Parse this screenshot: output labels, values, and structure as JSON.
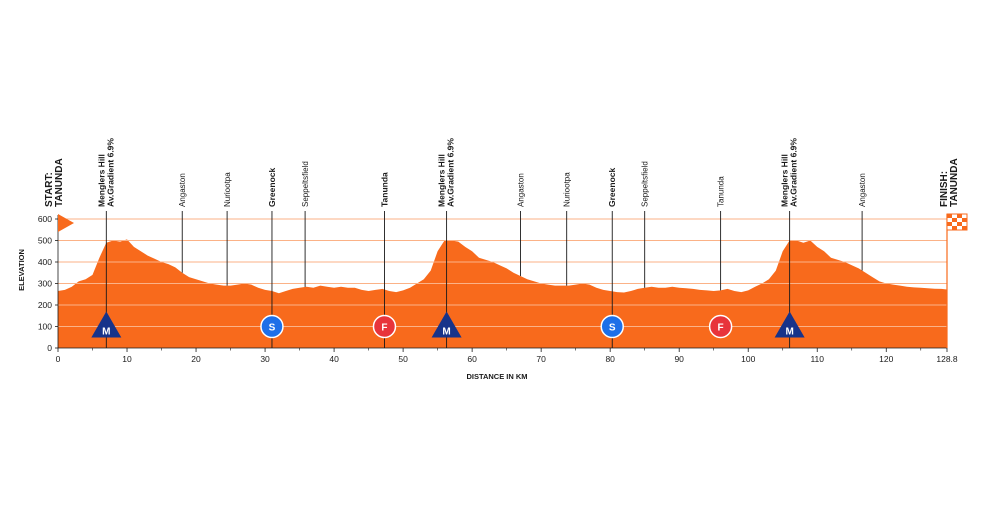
{
  "chart_data": {
    "type": "area",
    "xlabel": "DISTANCE IN KM",
    "ylabel": "ELEVATION",
    "xlim": [
      0,
      128.8
    ],
    "ylim": [
      0,
      600
    ],
    "x_ticks": [
      0,
      10,
      20,
      30,
      40,
      50,
      60,
      70,
      80,
      90,
      100,
      110,
      120,
      128.8
    ],
    "x_tick_labels": [
      "0",
      "10",
      "20",
      "30",
      "40",
      "50",
      "60",
      "70",
      "80",
      "90",
      "100",
      "110",
      "120",
      "128.8"
    ],
    "y_ticks": [
      0,
      100,
      200,
      300,
      400,
      500,
      600
    ],
    "y_tick_labels": [
      "0",
      "100",
      "200",
      "300",
      "400",
      "500",
      "600"
    ],
    "grid": true,
    "profile": {
      "x": [
        0,
        1,
        2,
        3,
        4,
        5,
        6,
        7,
        8,
        9,
        10,
        11,
        12,
        13,
        14,
        15,
        16,
        17,
        18,
        19,
        20,
        21,
        22,
        23,
        24,
        25,
        26,
        27,
        28,
        29,
        30,
        31,
        32,
        33,
        34,
        35,
        36,
        37,
        38,
        39,
        40,
        41,
        42,
        43,
        44,
        45,
        46,
        47,
        48,
        49,
        50,
        51,
        52,
        53,
        54,
        55,
        56,
        57,
        58,
        59,
        60,
        61,
        62,
        63,
        64,
        65,
        66,
        67,
        68,
        69,
        70,
        71,
        72,
        73,
        74,
        75,
        76,
        77,
        78,
        79,
        80,
        81,
        82,
        83,
        84,
        85,
        86,
        87,
        88,
        89,
        90,
        91,
        92,
        93,
        94,
        95,
        96,
        97,
        98,
        99,
        100,
        101,
        102,
        103,
        104,
        105,
        106,
        107,
        108,
        109,
        110,
        111,
        112,
        113,
        114,
        115,
        116,
        117,
        118,
        119,
        120,
        121,
        122,
        123,
        124,
        125,
        126,
        127,
        128,
        128.8
      ],
      "y": [
        265,
        270,
        285,
        310,
        320,
        340,
        420,
        490,
        500,
        495,
        505,
        470,
        450,
        430,
        415,
        400,
        390,
        375,
        350,
        330,
        320,
        310,
        300,
        295,
        290,
        290,
        295,
        300,
        295,
        280,
        270,
        265,
        255,
        265,
        275,
        280,
        285,
        280,
        290,
        285,
        280,
        285,
        280,
        280,
        270,
        265,
        270,
        275,
        265,
        260,
        268,
        280,
        300,
        320,
        360,
        450,
        500,
        500,
        495,
        470,
        450,
        420,
        410,
        400,
        385,
        370,
        350,
        335,
        320,
        310,
        300,
        295,
        290,
        290,
        290,
        295,
        300,
        295,
        280,
        270,
        265,
        260,
        258,
        265,
        275,
        280,
        285,
        280,
        280,
        285,
        280,
        278,
        275,
        270,
        268,
        265,
        268,
        275,
        265,
        260,
        268,
        285,
        300,
        320,
        360,
        450,
        500,
        500,
        490,
        500,
        470,
        450,
        420,
        410,
        400,
        385,
        370,
        350,
        330,
        310,
        300,
        295,
        290,
        285,
        282,
        280,
        278,
        276,
        275,
        272
      ]
    },
    "waypoints": [
      {
        "name": "Menglers Hill\nAv.Gradient 6.9%",
        "km": 7,
        "bold": true
      },
      {
        "name": "Angaston",
        "km": 18,
        "bold": false
      },
      {
        "name": "Nuriootpa",
        "km": 24.5,
        "bold": false
      },
      {
        "name": "Greenock",
        "km": 31,
        "bold": true
      },
      {
        "name": "Seppeltsfield",
        "km": 35.8,
        "bold": false
      },
      {
        "name": "Tanunda",
        "km": 47.3,
        "bold": true
      },
      {
        "name": "Menglers Hill\nAv.Gradient 6.9%",
        "km": 56.3,
        "bold": true
      },
      {
        "name": "Angaston",
        "km": 67,
        "bold": false
      },
      {
        "name": "Nuriootpa",
        "km": 73.7,
        "bold": false
      },
      {
        "name": "Greenock",
        "km": 80.3,
        "bold": true
      },
      {
        "name": "Seppeltsfield",
        "km": 85,
        "bold": false
      },
      {
        "name": "Tanunda",
        "km": 96,
        "bold": false
      },
      {
        "name": "Menglers Hill\nAv.Gradient 6.9%",
        "km": 106,
        "bold": true
      },
      {
        "name": "Angaston",
        "km": 116.5,
        "bold": false
      }
    ],
    "start": {
      "label": "START:\nTANUNDA",
      "km": 0
    },
    "finish": {
      "label": "FINISH:\nTANUNDA",
      "km": 128.8
    },
    "markers": [
      {
        "type": "M",
        "km": 7,
        "elevation": 100
      },
      {
        "type": "S",
        "km": 31,
        "elevation": 100
      },
      {
        "type": "F",
        "km": 47.3,
        "elevation": 100
      },
      {
        "type": "M",
        "km": 56.3,
        "elevation": 100
      },
      {
        "type": "S",
        "km": 80.3,
        "elevation": 100
      },
      {
        "type": "F",
        "km": 96,
        "elevation": 100
      },
      {
        "type": "M",
        "km": 106,
        "elevation": 100
      }
    ],
    "colors": {
      "profile": "#f86a1c",
      "grid": "#fbb287",
      "axis": "#1a1a1a",
      "kom": "#17338a",
      "sprint": "#1e6fe8",
      "feed": "#e8343b",
      "text": "#1a1a1a"
    }
  }
}
